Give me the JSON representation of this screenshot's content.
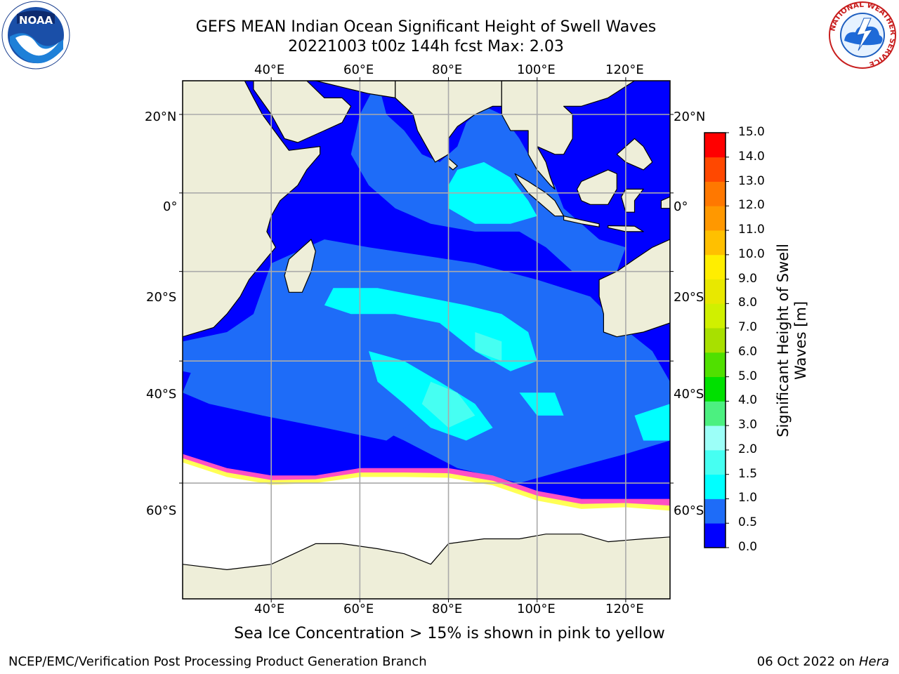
{
  "title": {
    "line1": "GEFS MEAN Indian Ocean Significant Height of Swell Waves",
    "line2": "20221003 t00z 144h fcst   Max: 2.03"
  },
  "map": {
    "lon_range": [
      20,
      130
    ],
    "lat_range": [
      -72,
      28
    ],
    "lon_ticks": [
      "40°E",
      "60°E",
      "80°E",
      "100°E",
      "120°E"
    ],
    "lat_ticks_left": [
      "20°N",
      "0°",
      "20°S",
      "40°S",
      "60°S"
    ],
    "lat_ticks_right": [
      "20°N",
      "0°",
      "20°S",
      "40°S",
      "60°S"
    ],
    "grid": true,
    "land_color": "#eeeed9",
    "ice_color": "#ffffff",
    "ice_edge_colors": [
      "#ff4fc4",
      "#ffb060",
      "#ffff55"
    ]
  },
  "colorbar": {
    "label_line1": "Significant Height of Swell",
    "label_line2": "Waves [m]",
    "ticks": [
      "0.0",
      "0.5",
      "1.0",
      "1.5",
      "2.0",
      "3.0",
      "4.0",
      "5.0",
      "6.0",
      "7.0",
      "8.0",
      "9.0",
      "10.0",
      "11.0",
      "12.0",
      "13.0",
      "14.0",
      "15.0"
    ],
    "colors": [
      "#0000ff",
      "#1e6cf8",
      "#00ffff",
      "#46fff2",
      "#9cfff8",
      "#4cf080",
      "#00e000",
      "#50e000",
      "#a8e000",
      "#d0f000",
      "#e8e800",
      "#ffee00",
      "#ffc000",
      "#ff9800",
      "#ff7800",
      "#ff4800",
      "#ff0000"
    ]
  },
  "note": "Sea Ice Concentration > 15% is shown in pink to yellow",
  "footer": {
    "left": "NCEP/EMC/Verification Post Processing Product Generation Branch",
    "date": "06 Oct 2022 on ",
    "host": "Hera"
  },
  "logos": {
    "noaa_text": "NOAA",
    "nws_text": "NATIONAL WEATHER SERVICE"
  }
}
